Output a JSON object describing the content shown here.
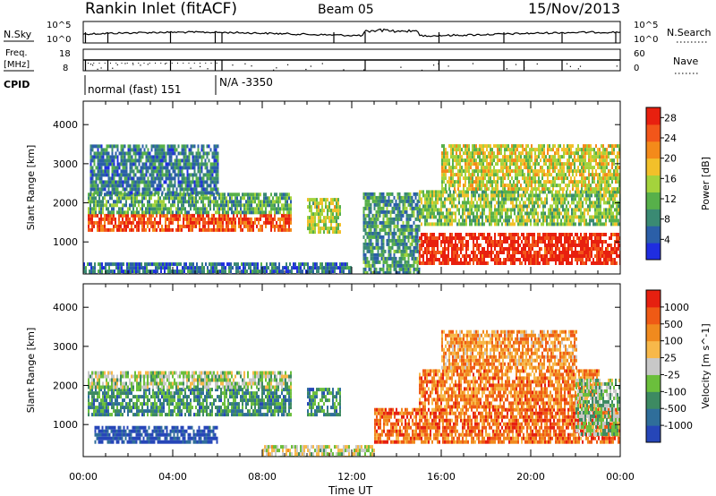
{
  "header": {
    "station": "Rankin Inlet (fitACF)",
    "beam": "Beam 05",
    "date": "15/Nov/2013"
  },
  "strip_panels": {
    "nsky_label": "N.Sky",
    "nsearch_label": "N.Search",
    "freq_label_line1": "Freq.",
    "freq_label_line2": "[MHz]",
    "nave_label": "Nave",
    "cpid_label": "CPID",
    "nsky_ticks": [
      "10^5",
      "10^0"
    ],
    "nsearch_ticks": [
      "10^5",
      "10^0"
    ],
    "freq_ticks": [
      "18",
      "8"
    ],
    "nave_ticks": [
      "60",
      "0"
    ],
    "cpid_segments": [
      "normal (fast) 151",
      "N/A -3350"
    ]
  },
  "time_axis": {
    "label": "Time UT",
    "ticks": [
      "00:00",
      "04:00",
      "08:00",
      "12:00",
      "16:00",
      "20:00",
      "00:00"
    ]
  },
  "chart_data": [
    {
      "type": "heatmap",
      "panel": "power",
      "xlabel": "Time UT",
      "ylabel": "Slant Range [km]",
      "y_ticks": [
        1000,
        2000,
        3000,
        4000
      ],
      "ylim": [
        180,
        4600
      ],
      "xlim_hours": [
        0,
        24
      ],
      "colorbar": {
        "label": "Power [dB]",
        "ticks": [
          4,
          8,
          12,
          16,
          20,
          24,
          28
        ],
        "range": [
          0,
          30
        ],
        "colors": [
          "#1f2de0",
          "#2b5fa8",
          "#3a8a73",
          "#57b04a",
          "#a4d33c",
          "#f2c02a",
          "#f48a1a",
          "#f2561a",
          "#e8200f"
        ]
      },
      "regions": [
        {
          "t0": 0.2,
          "t1": 9.3,
          "r0": 1350,
          "r1": 1800,
          "level": 0.85
        },
        {
          "t0": 0.2,
          "t1": 9.3,
          "r0": 1800,
          "r1": 2300,
          "level": 0.35
        },
        {
          "t0": 0.3,
          "t1": 6.0,
          "r0": 2300,
          "r1": 3500,
          "level": 0.25
        },
        {
          "t0": 10.0,
          "t1": 11.5,
          "r0": 1300,
          "r1": 2200,
          "level": 0.5
        },
        {
          "t0": 12.5,
          "t1": 15.0,
          "r0": 250,
          "r1": 2300,
          "level": 0.3
        },
        {
          "t0": 15.0,
          "t1": 24.0,
          "r0": 500,
          "r1": 1300,
          "level": 0.95
        },
        {
          "t0": 15.0,
          "t1": 24.0,
          "r0": 1500,
          "r1": 2400,
          "level": 0.45
        },
        {
          "t0": 16.0,
          "t1": 24.0,
          "r0": 2400,
          "r1": 3500,
          "level": 0.55
        },
        {
          "t0": 0.0,
          "t1": 12.0,
          "r0": 200,
          "r1": 500,
          "level": 0.2
        }
      ]
    },
    {
      "type": "heatmap",
      "panel": "velocity",
      "xlabel": "Time UT",
      "ylabel": "Slant Range [km]",
      "y_ticks": [
        1000,
        2000,
        3000,
        4000
      ],
      "ylim": [
        180,
        4600
      ],
      "xlim_hours": [
        0,
        24
      ],
      "colorbar": {
        "label": "Velocity [m s^-1]",
        "ticks": [
          1000,
          500,
          100,
          25,
          -25,
          -100,
          -500,
          -1000
        ],
        "colors": [
          "#2646b8",
          "#2f6e9a",
          "#3d8a62",
          "#6bbf3c",
          "#c8c8c8",
          "#f7b84a",
          "#f08a1e",
          "#ef5a15",
          "#e62010"
        ]
      },
      "regions": [
        {
          "t0": 0.2,
          "t1": 9.3,
          "r0": 1300,
          "r1": 2000,
          "level": 0.27
        },
        {
          "t0": 0.2,
          "t1": 9.3,
          "r0": 2000,
          "r1": 2400,
          "level": 0.45
        },
        {
          "t0": 10.0,
          "t1": 11.5,
          "r0": 1300,
          "r1": 2000,
          "level": 0.27
        },
        {
          "t0": 13.0,
          "t1": 24.0,
          "r0": 600,
          "r1": 1500,
          "level": 0.8
        },
        {
          "t0": 15.0,
          "t1": 23.0,
          "r0": 1500,
          "r1": 2500,
          "level": 0.75
        },
        {
          "t0": 16.0,
          "t1": 22.0,
          "r0": 2500,
          "r1": 3500,
          "level": 0.7
        },
        {
          "t0": 22.0,
          "t1": 24.0,
          "r0": 800,
          "r1": 2200,
          "level": 0.4
        },
        {
          "t0": 0.5,
          "t1": 6.0,
          "r0": 600,
          "r1": 1000,
          "level": 0.05
        },
        {
          "t0": 8.0,
          "t1": 13.0,
          "r0": 200,
          "r1": 500,
          "level": 0.5
        }
      ]
    }
  ]
}
